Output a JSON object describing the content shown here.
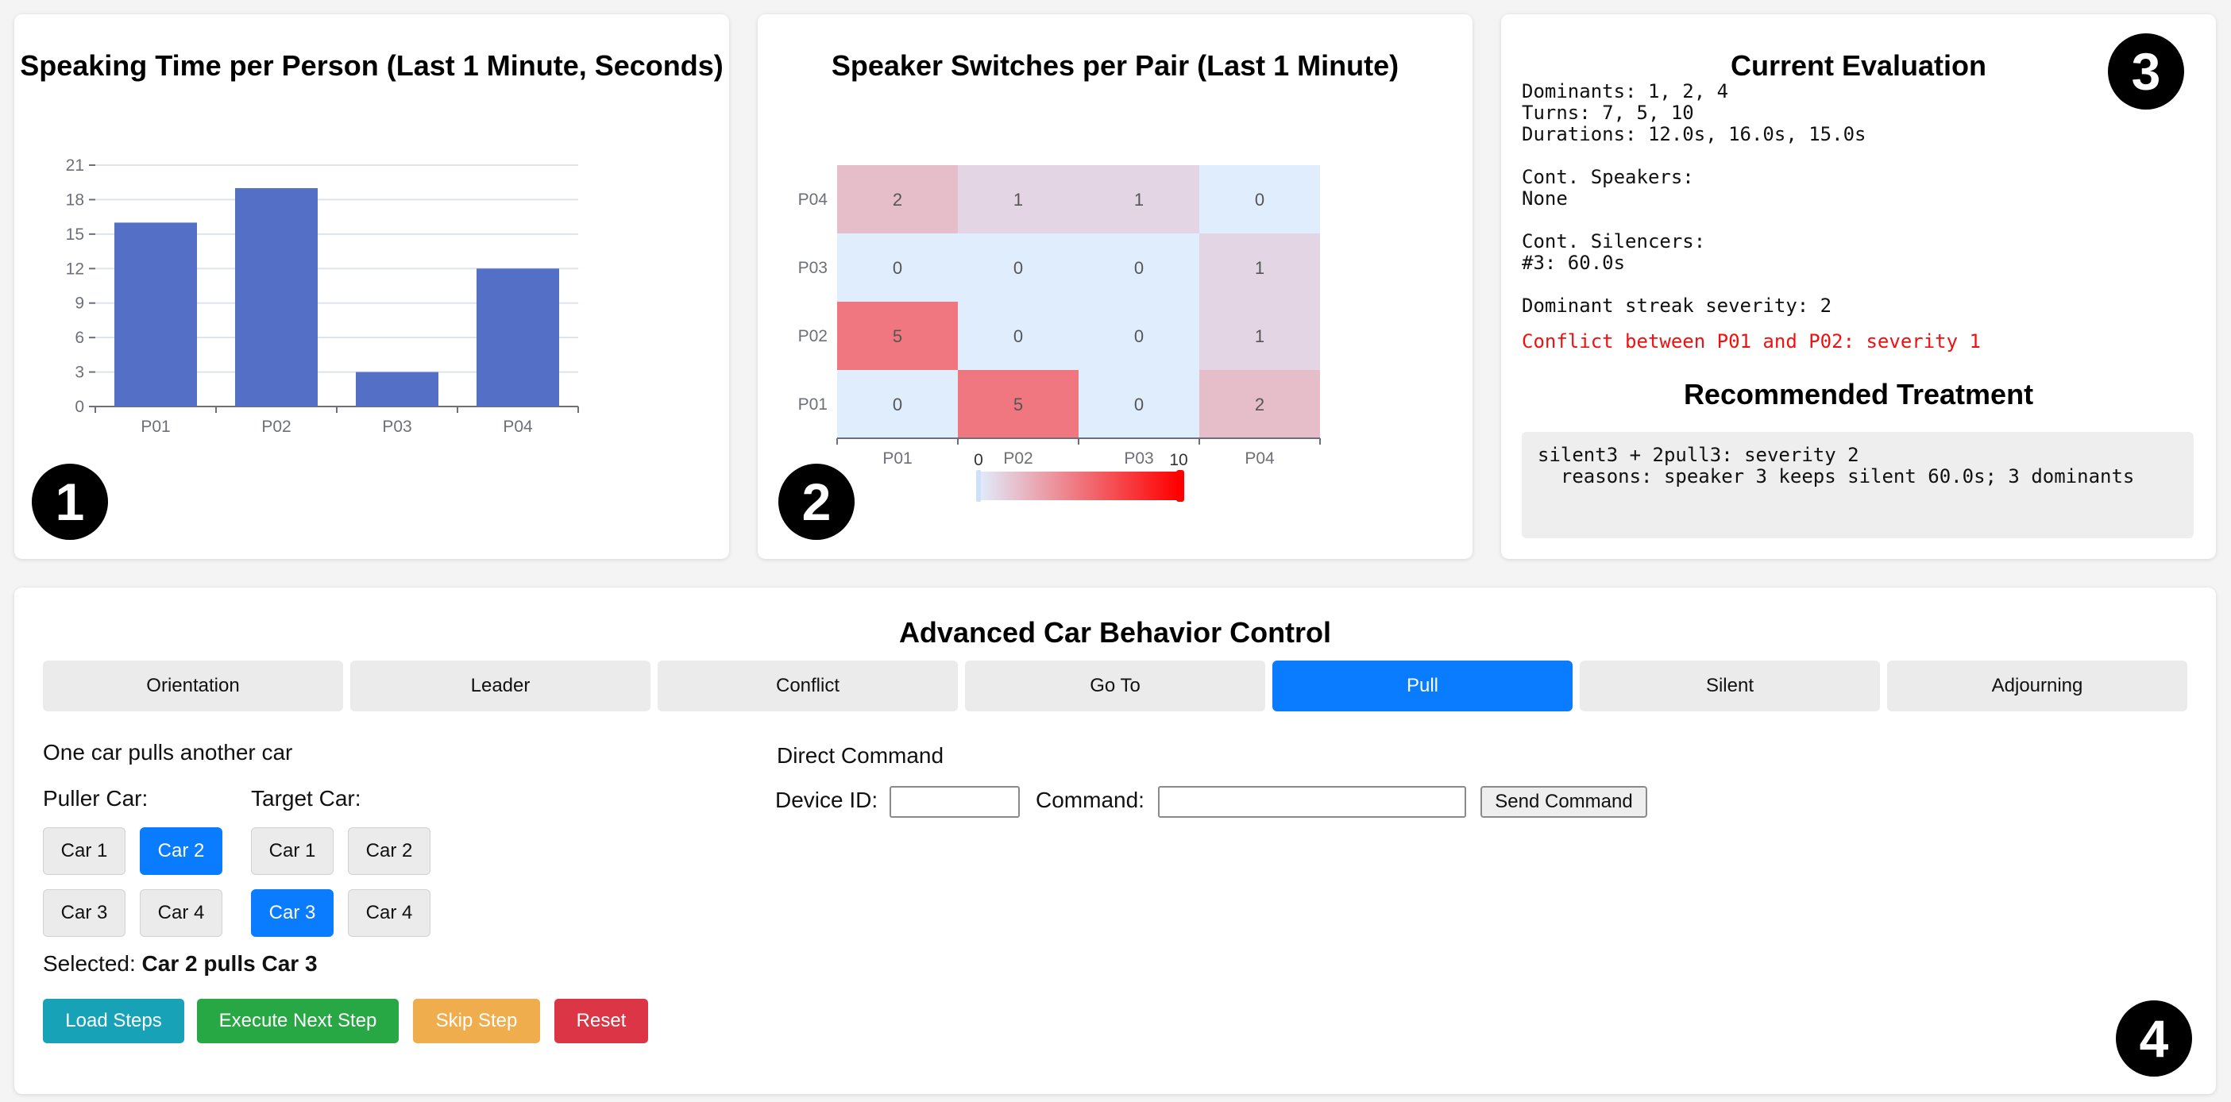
{
  "speaking_time": {
    "title": "Speaking Time per Person (Last 1 Minute, Seconds)",
    "badge": "1"
  },
  "switches": {
    "title": "Speaker Switches per Pair (Last 1 Minute)",
    "badge": "2",
    "colorscale_min": "0",
    "colorscale_max": "10"
  },
  "evaluation": {
    "title": "Current Evaluation",
    "badge": "3",
    "dominants": "Dominants: 1, 2, 4",
    "turns": "Turns: 7, 5, 10",
    "durations": "Durations: 12.0s, 16.0s, 15.0s",
    "cont_speakers_label": "Cont. Speakers:",
    "cont_speakers_value": "None",
    "cont_silencers_label": "Cont. Silencers:",
    "cont_silencers_value": "#3: 60.0s",
    "streak": "Dominant streak severity: 2",
    "conflict": "Conflict between P01 and P02: severity 1",
    "conflict_color": "#ee1111",
    "treatment_title": "Recommended Treatment",
    "treatment_line1": "silent3 + 2pull3: severity 2",
    "treatment_line2": "  reasons: speaker 3 keeps silent 60.0s; 3 dominants"
  },
  "control": {
    "title": "Advanced Car Behavior Control",
    "badge": "4",
    "tabs": [
      "Orientation",
      "Leader",
      "Conflict",
      "Go To",
      "Pull",
      "Silent",
      "Adjourning"
    ],
    "active_tab": "Pull",
    "description": "One car pulls another car",
    "puller_label": "Puller Car:",
    "target_label": "Target Car:",
    "puller_cars": [
      "Car 1",
      "Car 2",
      "Car 3",
      "Car 4"
    ],
    "target_cars": [
      "Car 1",
      "Car 2",
      "Car 3",
      "Car 4"
    ],
    "puller_selected": "Car 2",
    "target_selected": "Car 3",
    "selected_label": "Selected:",
    "selected_value": "Car 2 pulls Car 3",
    "direct_command_title": "Direct Command",
    "device_id_label": "Device ID:",
    "device_id_value": "",
    "command_label": "Command:",
    "command_value": "",
    "send_label": "Send Command",
    "load_label": "Load Steps",
    "execute_label": "Execute Next Step",
    "skip_label": "Skip Step",
    "reset_label": "Reset",
    "colors": {
      "accent": "#0a7cff",
      "load": "#17a2b8",
      "execute": "#28a745",
      "skip": "#f0ad4e",
      "reset": "#dc3545"
    }
  },
  "chart_data": [
    {
      "type": "bar",
      "title": "Speaking Time per Person (Last 1 Minute, Seconds)",
      "categories": [
        "P01",
        "P02",
        "P03",
        "P04"
      ],
      "values": [
        16,
        19,
        3,
        12
      ],
      "yticks": [
        "0",
        "3",
        "6",
        "9",
        "12",
        "15",
        "18",
        "21"
      ],
      "ylim": [
        0,
        21
      ],
      "grid": true,
      "color": "#5470c6"
    },
    {
      "type": "heatmap",
      "title": "Speaker Switches per Pair (Last 1 Minute)",
      "x_categories": [
        "P01",
        "P02",
        "P03",
        "P04"
      ],
      "y_categories": [
        "P01",
        "P02",
        "P03",
        "P04"
      ],
      "rows": [
        {
          "y": "P04",
          "values": [
            2,
            1,
            1,
            0
          ]
        },
        {
          "y": "P03",
          "values": [
            0,
            0,
            0,
            1
          ]
        },
        {
          "y": "P02",
          "values": [
            5,
            0,
            0,
            1
          ]
        },
        {
          "y": "P01",
          "values": [
            0,
            5,
            0,
            2
          ]
        }
      ],
      "zlim": [
        0,
        10
      ],
      "colorscale": [
        "#e0edfd",
        "#ff0000"
      ]
    }
  ]
}
